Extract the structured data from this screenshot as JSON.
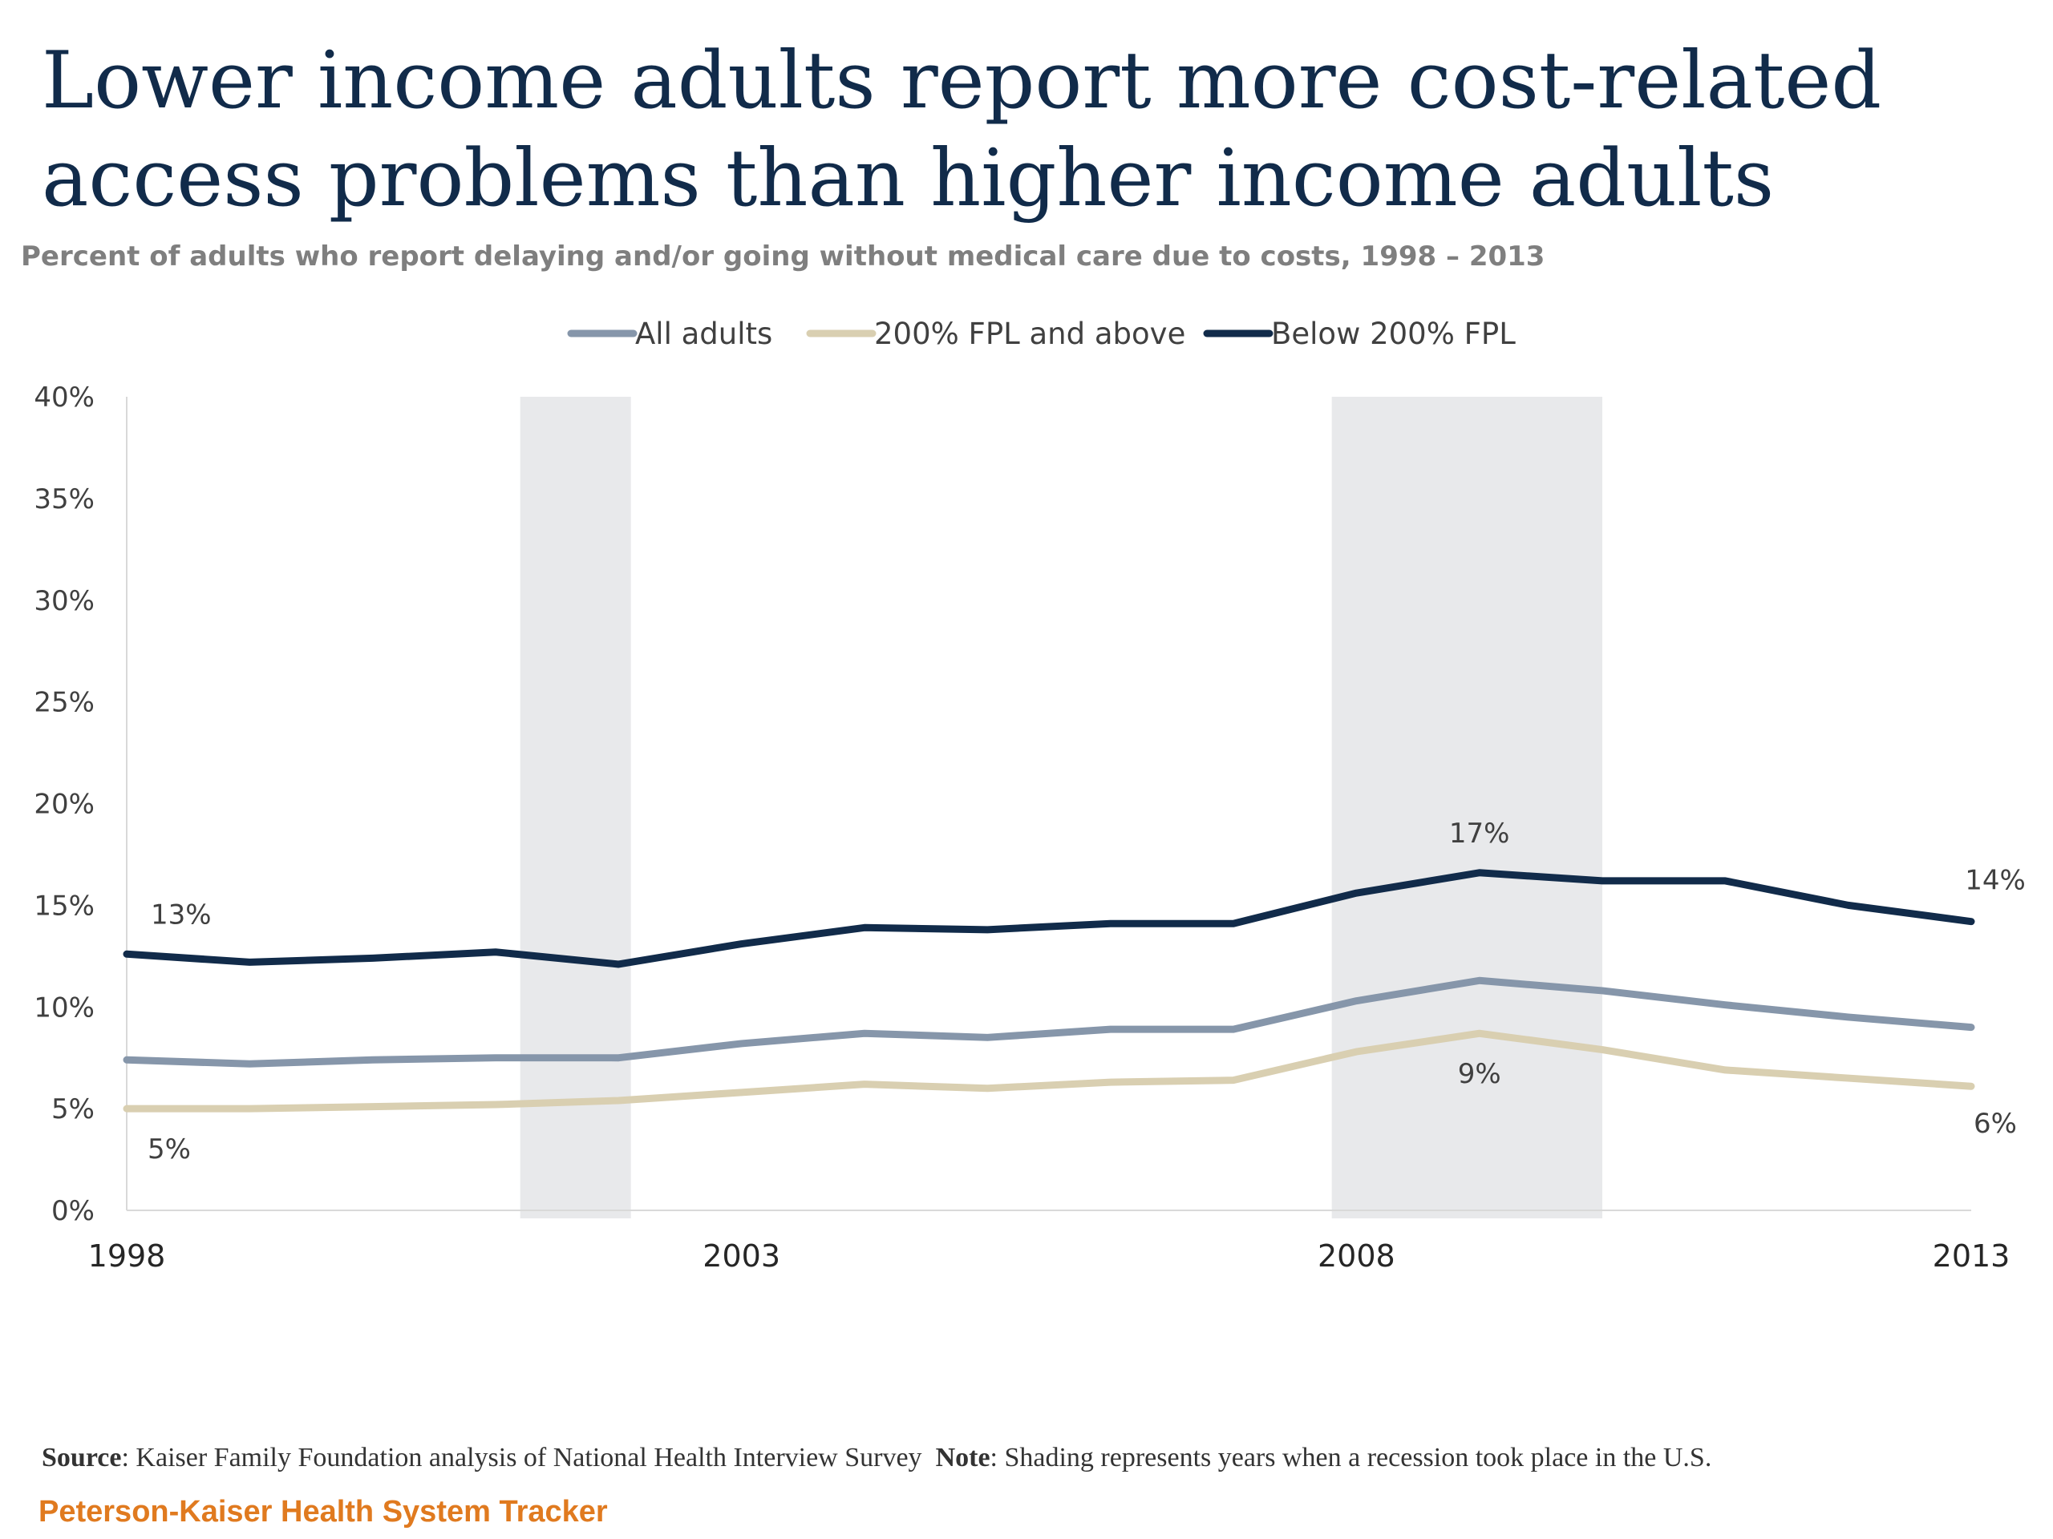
{
  "title": "Lower income adults report more cost-related access problems than higher income adults",
  "subtitle": "Percent of adults who report delaying and/or going without medical care due to costs, 1998 – 2013",
  "footer": {
    "source_label": "Source",
    "source_text": ": Kaiser Family Foundation analysis of National Health Interview Survey",
    "note_label": "Note",
    "note_text": ": Shading represents years when a recession took place in the U.S.",
    "tracker": "Peterson-Kaiser Health System Tracker"
  },
  "chart_data": {
    "type": "line",
    "x": [
      1998,
      1999,
      2000,
      2001,
      2002,
      2003,
      2004,
      2005,
      2006,
      2007,
      2008,
      2009,
      2010,
      2011,
      2012,
      2013
    ],
    "xticks": [
      "1998",
      "2003",
      "2008",
      "2013"
    ],
    "ylim": [
      0,
      40
    ],
    "yticks": [
      "0%",
      "5%",
      "10%",
      "15%",
      "20%",
      "25%",
      "30%",
      "35%",
      "40%"
    ],
    "grid": false,
    "legend_position": "top",
    "recession_shading": [
      [
        2001.2,
        2002.1
      ],
      [
        2007.8,
        2010.0
      ]
    ],
    "series": [
      {
        "name": "All adults",
        "color": "#8696aa",
        "values": [
          7.4,
          7.2,
          7.4,
          7.5,
          7.5,
          8.2,
          8.7,
          8.5,
          8.9,
          8.9,
          10.3,
          11.3,
          10.8,
          10.1,
          9.5,
          9.0
        ]
      },
      {
        "name": "200% FPL and above",
        "color": "#d9cfb1",
        "values": [
          5.0,
          5.0,
          5.1,
          5.2,
          5.4,
          5.8,
          6.2,
          6.0,
          6.3,
          6.4,
          7.8,
          8.7,
          7.9,
          6.9,
          6.5,
          6.1
        ]
      },
      {
        "name": "Below 200% FPL",
        "color": "#112b4a",
        "values": [
          12.6,
          12.2,
          12.4,
          12.7,
          12.1,
          13.1,
          13.9,
          13.8,
          14.1,
          14.1,
          15.6,
          16.6,
          16.2,
          16.2,
          15.0,
          14.2
        ]
      }
    ],
    "annotations": [
      {
        "text": "13%",
        "x": 1998,
        "series": "Below 200% FPL",
        "pos": "above"
      },
      {
        "text": "5%",
        "x": 1998,
        "series": "200% FPL and above",
        "pos": "below"
      },
      {
        "text": "17%",
        "x": 2009,
        "series": "Below 200% FPL",
        "pos": "above"
      },
      {
        "text": "9%",
        "x": 2009,
        "series": "200% FPL and above",
        "pos": "below"
      },
      {
        "text": "14%",
        "x": 2013,
        "series": "Below 200% FPL",
        "pos": "above-right"
      },
      {
        "text": "6%",
        "x": 2013,
        "series": "200% FPL and above",
        "pos": "below-right"
      }
    ]
  }
}
